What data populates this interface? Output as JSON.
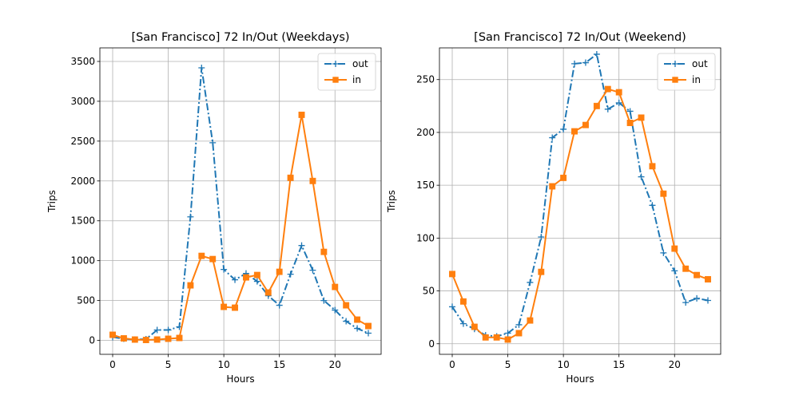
{
  "chart_data": [
    {
      "type": "line",
      "title": "[San Francisco] 72 In/Out (Weekdays)",
      "xlabel": "Hours",
      "ylabel": "Trips",
      "xlim": [
        -1.15,
        24.15
      ],
      "ylim": [
        -175,
        3670
      ],
      "xticks": [
        0,
        5,
        10,
        15,
        20
      ],
      "yticks": [
        0,
        500,
        1000,
        1500,
        2000,
        2500,
        3000,
        3500
      ],
      "grid": true,
      "legend_position": "top-right",
      "x": [
        0,
        1,
        2,
        3,
        4,
        5,
        6,
        7,
        8,
        9,
        10,
        11,
        12,
        13,
        14,
        15,
        16,
        17,
        18,
        19,
        20,
        21,
        22,
        23
      ],
      "series": [
        {
          "name": "out",
          "color": "#1f77b4",
          "style": "dashdot",
          "marker": "plus",
          "values": [
            40,
            20,
            10,
            15,
            130,
            130,
            170,
            1550,
            3420,
            2480,
            890,
            760,
            840,
            740,
            560,
            440,
            830,
            1190,
            880,
            500,
            380,
            240,
            150,
            90
          ]
        },
        {
          "name": "in",
          "color": "#ff7f0e",
          "style": "solid",
          "marker": "square",
          "values": [
            70,
            25,
            10,
            5,
            10,
            20,
            30,
            690,
            1060,
            1020,
            420,
            410,
            790,
            820,
            600,
            860,
            2040,
            2830,
            2000,
            1110,
            670,
            440,
            260,
            180
          ]
        }
      ]
    },
    {
      "type": "line",
      "title": "[San Francisco] 72 In/Out (Weekend)",
      "xlabel": "Hours",
      "ylabel": "Trips",
      "xlim": [
        -1.15,
        24.15
      ],
      "ylim": [
        -10,
        280
      ],
      "xticks": [
        0,
        5,
        10,
        15,
        20
      ],
      "yticks": [
        0,
        50,
        100,
        150,
        200,
        250
      ],
      "grid": true,
      "legend_position": "top-right",
      "x": [
        0,
        1,
        2,
        3,
        4,
        5,
        6,
        7,
        8,
        9,
        10,
        11,
        12,
        13,
        14,
        15,
        16,
        17,
        18,
        19,
        20,
        21,
        22,
        23
      ],
      "series": [
        {
          "name": "out",
          "color": "#1f77b4",
          "style": "dashdot",
          "marker": "plus",
          "values": [
            35,
            19,
            14,
            8,
            7,
            10,
            18,
            58,
            101,
            195,
            203,
            265,
            266,
            274,
            222,
            228,
            220,
            158,
            131,
            86,
            69,
            39,
            43,
            41
          ]
        },
        {
          "name": "in",
          "color": "#ff7f0e",
          "style": "solid",
          "marker": "square",
          "values": [
            66,
            40,
            16,
            6,
            6,
            4,
            10,
            22,
            68,
            149,
            157,
            201,
            207,
            225,
            241,
            238,
            209,
            214,
            168,
            142,
            90,
            71,
            65,
            61
          ]
        }
      ]
    }
  ]
}
